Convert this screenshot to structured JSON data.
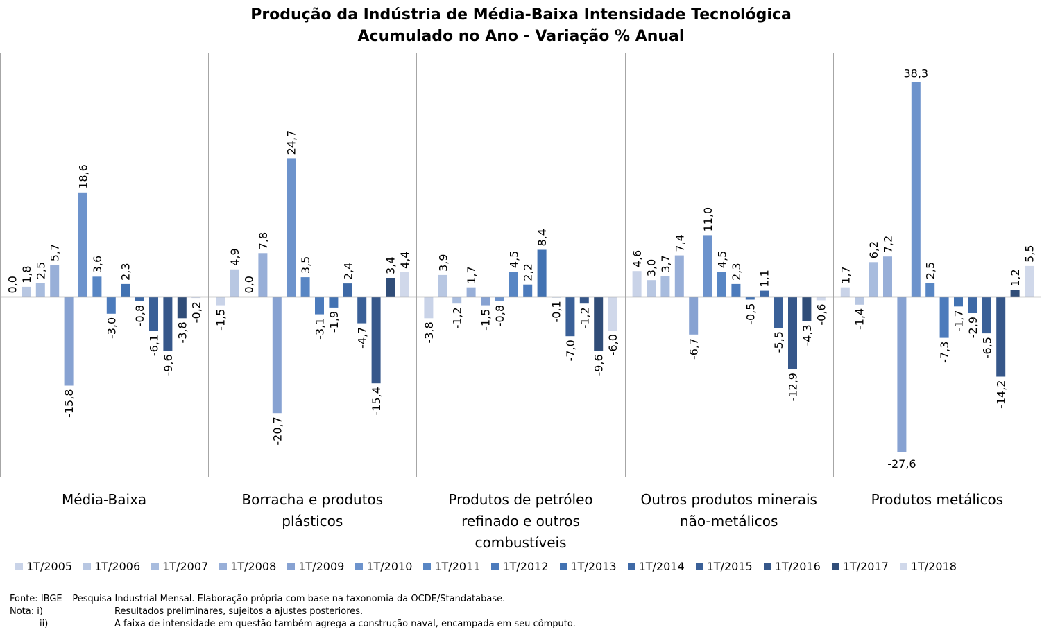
{
  "title": {
    "line1": "Produção da Indústria de Média-Baixa  Intensidade Tecnológica",
    "line2": "Acumulado no Ano - Variação % Anual"
  },
  "chart_data": {
    "type": "bar",
    "title": "Produção da Indústria de Média-Baixa  Intensidade Tecnológica — Acumulado no Ano - Variação % Anual",
    "xlabel": "",
    "ylabel": "",
    "ylim": [
      -30,
      40
    ],
    "grid": false,
    "legend_position": "bottom",
    "categories": [
      [
        "Média-Baixa"
      ],
      [
        "Borracha e produtos",
        "plásticos"
      ],
      [
        "Produtos de petróleo",
        "refinado e outros",
        "combustíveis"
      ],
      [
        "Outros produtos minerais",
        "não-metálicos"
      ],
      [
        "Produtos metálicos"
      ]
    ],
    "series": [
      {
        "name": "1T/2005",
        "color": "#c9d3e8",
        "values": [
          0.0,
          -1.5,
          -3.8,
          4.6,
          1.7
        ]
      },
      {
        "name": "1T/2006",
        "color": "#b8c7e2",
        "values": [
          1.8,
          4.9,
          3.9,
          3.0,
          -1.4
        ]
      },
      {
        "name": "1T/2007",
        "color": "#a8bcde",
        "values": [
          2.5,
          0.0,
          -1.2,
          3.7,
          6.2
        ]
      },
      {
        "name": "1T/2008",
        "color": "#98afd8",
        "values": [
          5.7,
          7.8,
          1.7,
          7.4,
          7.2
        ]
      },
      {
        "name": "1T/2009",
        "color": "#87a2d2",
        "values": [
          -15.8,
          -20.7,
          -1.5,
          -6.7,
          -27.6
        ]
      },
      {
        "name": "1T/2010",
        "color": "#6d93cc",
        "values": [
          18.6,
          24.7,
          -0.8,
          11.0,
          38.3
        ]
      },
      {
        "name": "1T/2011",
        "color": "#5886c4",
        "values": [
          3.6,
          3.5,
          4.5,
          4.5,
          2.5
        ]
      },
      {
        "name": "1T/2012",
        "color": "#4c7bbc",
        "values": [
          -3.0,
          -3.1,
          2.2,
          2.3,
          -7.3
        ]
      },
      {
        "name": "1T/2013",
        "color": "#4272b2",
        "values": [
          2.3,
          -1.9,
          8.4,
          -0.5,
          -1.7
        ]
      },
      {
        "name": "1T/2014",
        "color": "#3e69a6",
        "values": [
          -0.8,
          2.4,
          -0.1,
          1.1,
          -2.9
        ]
      },
      {
        "name": "1T/2015",
        "color": "#3a6098",
        "values": [
          -6.1,
          -4.7,
          -7.0,
          -5.5,
          -6.5
        ]
      },
      {
        "name": "1T/2016",
        "color": "#36578a",
        "values": [
          -9.6,
          -15.4,
          -1.2,
          -12.9,
          -14.2
        ]
      },
      {
        "name": "1T/2017",
        "color": "#304d78",
        "values": [
          -3.8,
          3.4,
          -9.6,
          -4.3,
          1.2
        ]
      },
      {
        "name": "1T/2018",
        "color": "#d0d8ea",
        "values": [
          -0.2,
          4.4,
          -6.0,
          -0.6,
          5.5
        ]
      }
    ]
  },
  "notes": [
    {
      "label": "Fonte: IBGE – Pesquisa Industrial Mensal. Elaboração própria com base na taxonomia da OCDE/Standatabase.",
      "text": ""
    },
    {
      "label": "Nota: i)",
      "text": "Resultados preliminares, sujeitos a ajustes posteriores."
    },
    {
      "label": "ii)",
      "text": "A faixa de intensidade em questão também agrega a construção naval, encampada em seu cômputo."
    }
  ]
}
